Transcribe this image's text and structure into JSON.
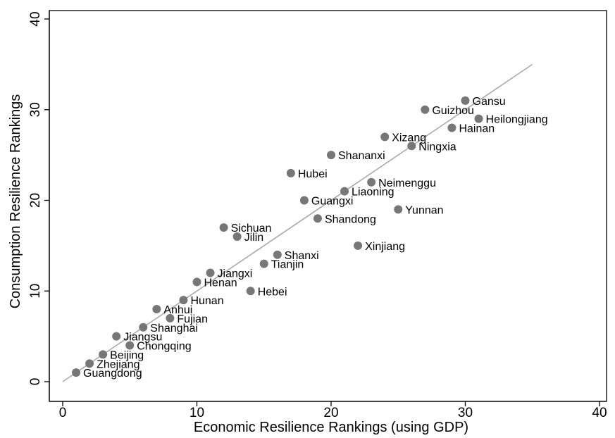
{
  "chart_data": {
    "type": "scatter",
    "title": "",
    "xlabel": "Economic Resilience Rankings (using GDP)",
    "ylabel": "Consumption Resilience Rankings",
    "xlim": [
      0,
      40
    ],
    "ylim": [
      0,
      40
    ],
    "xticks": [
      0,
      10,
      20,
      30,
      40
    ],
    "yticks": [
      0,
      10,
      20,
      30,
      40
    ],
    "grid": false,
    "legend": "none",
    "marker_color": "#777777",
    "fit_line": {
      "x": [
        0,
        35
      ],
      "y": [
        0,
        35
      ],
      "color": "#aaaaaa"
    },
    "points": [
      {
        "label": "Guangdong",
        "x": 1,
        "y": 1
      },
      {
        "label": "Zhejiang",
        "x": 2,
        "y": 2
      },
      {
        "label": "Beijing",
        "x": 3,
        "y": 3
      },
      {
        "label": "Jiangsu",
        "x": 4,
        "y": 5
      },
      {
        "label": "Chongqing",
        "x": 5,
        "y": 4
      },
      {
        "label": "Shanghai",
        "x": 6,
        "y": 6
      },
      {
        "label": "Anhui",
        "x": 7,
        "y": 8
      },
      {
        "label": "Fujian",
        "x": 8,
        "y": 7
      },
      {
        "label": "Hunan",
        "x": 9,
        "y": 9
      },
      {
        "label": "Henan",
        "x": 10,
        "y": 11
      },
      {
        "label": "Jiangxi",
        "x": 11,
        "y": 12
      },
      {
        "label": "Sichuan",
        "x": 12,
        "y": 17
      },
      {
        "label": "Jilin",
        "x": 13,
        "y": 16
      },
      {
        "label": "Hebei",
        "x": 14,
        "y": 10
      },
      {
        "label": "Tianjin",
        "x": 15,
        "y": 13
      },
      {
        "label": "Shanxi",
        "x": 16,
        "y": 14
      },
      {
        "label": "Hubei",
        "x": 17,
        "y": 23
      },
      {
        "label": "Guangxi",
        "x": 18,
        "y": 20
      },
      {
        "label": "Shandong",
        "x": 19,
        "y": 18
      },
      {
        "label": "Shananxi",
        "x": 20,
        "y": 25
      },
      {
        "label": "Liaoning",
        "x": 21,
        "y": 21
      },
      {
        "label": "Xinjiang",
        "x": 22,
        "y": 15
      },
      {
        "label": "Neimenggu",
        "x": 23,
        "y": 22
      },
      {
        "label": "Xizang",
        "x": 24,
        "y": 27
      },
      {
        "label": "Yunnan",
        "x": 25,
        "y": 19
      },
      {
        "label": "Ningxia",
        "x": 26,
        "y": 26
      },
      {
        "label": "Guizhou",
        "x": 27,
        "y": 30
      },
      {
        "label": "Hainan",
        "x": 29,
        "y": 28
      },
      {
        "label": "Gansu",
        "x": 30,
        "y": 31
      },
      {
        "label": "Heilongjiang",
        "x": 31,
        "y": 29
      }
    ]
  }
}
